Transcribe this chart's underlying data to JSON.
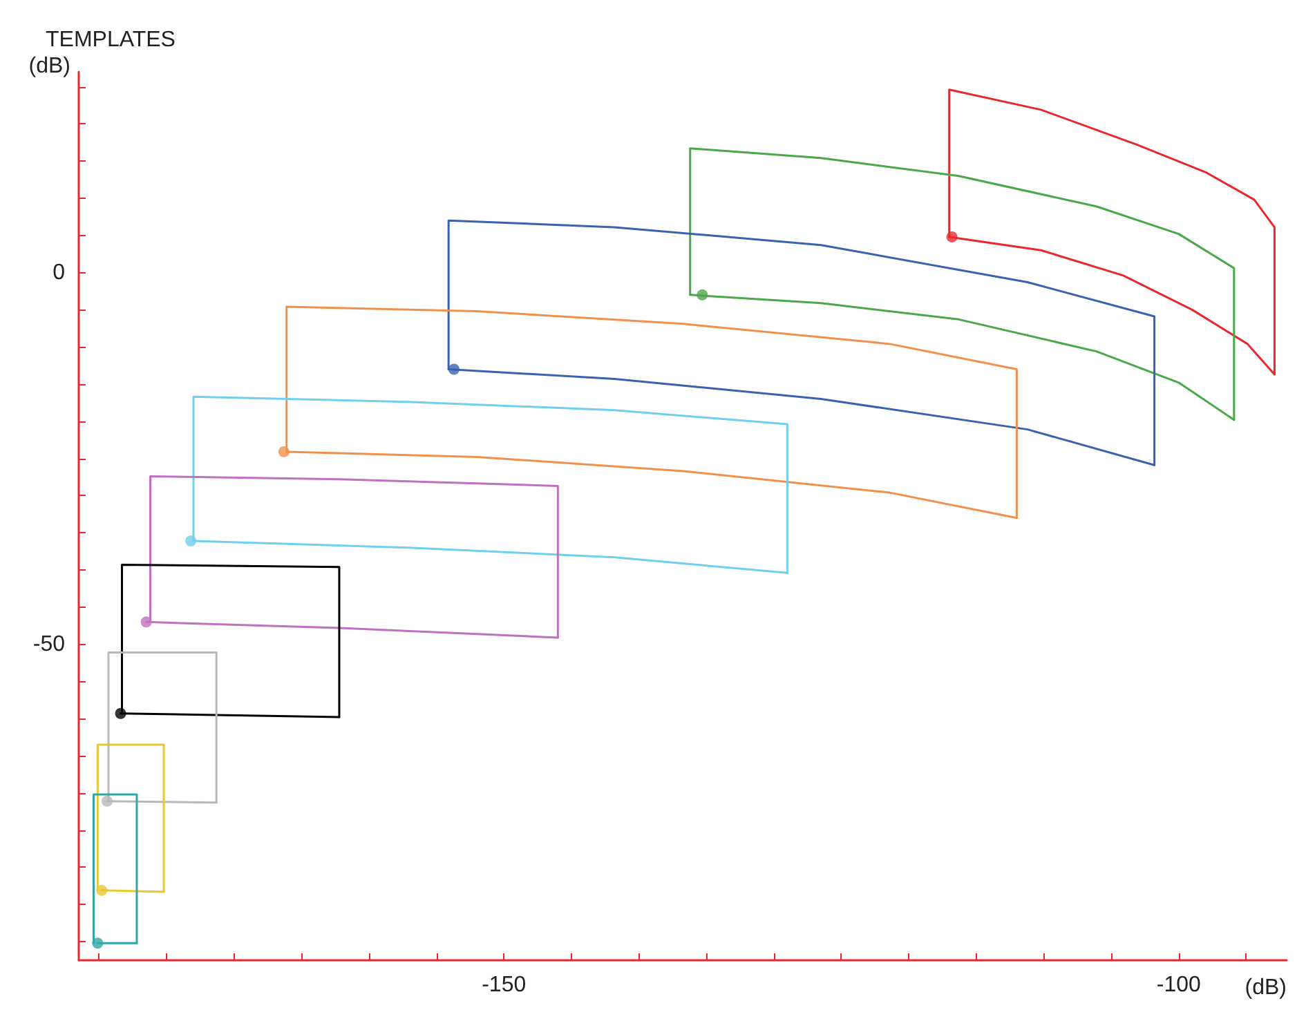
{
  "chart_data": {
    "type": "line",
    "title": "TEMPLATES",
    "xlabel": "(dB)",
    "ylabel": "(dB)",
    "xlim": [
      -181.5,
      -92
    ],
    "ylim": [
      -92.5,
      27
    ],
    "xticks": [
      {
        "value": -180,
        "label": null
      },
      {
        "value": -175,
        "label": null
      },
      {
        "value": -170,
        "label": null
      },
      {
        "value": -165,
        "label": null
      },
      {
        "value": -160,
        "label": null
      },
      {
        "value": -155,
        "label": null
      },
      -150,
      {
        "value": -145,
        "label": null
      },
      {
        "value": -140,
        "label": null
      },
      {
        "value": -135,
        "label": null
      },
      {
        "value": -130,
        "label": null
      },
      {
        "value": -125,
        "label": null
      },
      {
        "value": -120,
        "label": null
      },
      {
        "value": -115,
        "label": null
      },
      {
        "value": -110,
        "label": null
      },
      {
        "value": -105,
        "label": null
      },
      -100,
      {
        "value": -95,
        "label": null
      }
    ],
    "yticks": [
      {
        "value": -90,
        "label": null
      },
      {
        "value": -85,
        "label": null
      },
      {
        "value": -80,
        "label": null
      },
      {
        "value": -75,
        "label": null
      },
      {
        "value": -70,
        "label": null
      },
      {
        "value": -65,
        "label": null
      },
      {
        "value": -60,
        "label": null
      },
      {
        "value": -55,
        "label": null
      },
      -50,
      {
        "value": -45,
        "label": null
      },
      {
        "value": -40,
        "label": null
      },
      {
        "value": -35,
        "label": null
      },
      {
        "value": -30,
        "label": null
      },
      {
        "value": -25,
        "label": null
      },
      {
        "value": -20,
        "label": null
      },
      {
        "value": -15,
        "label": null
      },
      {
        "value": -10,
        "label": null
      },
      {
        "value": -5,
        "label": null
      },
      0,
      {
        "value": 5,
        "label": null
      },
      {
        "value": 10,
        "label": null
      },
      {
        "value": 15,
        "label": null
      },
      {
        "value": 20,
        "label": null
      },
      {
        "value": 25,
        "label": null
      }
    ],
    "grid": false,
    "series": [
      {
        "color": "#e8282e",
        "x": [
          -117.0,
          -117.0,
          -110.2,
          -103.1,
          -98.0,
          -94.4,
          -92.9,
          -92.9
        ],
        "values": [
          4.8,
          24.6,
          21.9,
          17.2,
          13.5,
          9.8,
          6.1,
          -13.7
        ]
      },
      {
        "color": "#e8282e",
        "x": [
          -117.0,
          -110.2,
          -104.1,
          -99.0,
          -94.9,
          -92.9
        ],
        "values": [
          4.8,
          3.0,
          -0.4,
          -5.0,
          -9.6,
          -13.7
        ]
      },
      {
        "type": "scatter",
        "color": "#e8282e",
        "x": [
          -116.8
        ],
        "values": [
          4.8
        ]
      },
      {
        "color": "#4aa84a",
        "x": [
          -136.2,
          -136.2,
          -126.5,
          -116.3,
          -106.1,
          -100,
          -95.9,
          -95.9
        ],
        "values": [
          -3.0,
          16.7,
          15.4,
          13.0,
          8.9,
          5.2,
          0.6,
          -19.8
        ]
      },
      {
        "color": "#4aa84a",
        "x": [
          -136.2,
          -126.5,
          -116.3,
          -106.1,
          -100,
          -95.9
        ],
        "values": [
          -3.0,
          -4.1,
          -6.3,
          -10.6,
          -14.8,
          -19.8
        ]
      },
      {
        "type": "scatter",
        "color": "#4aa84a",
        "x": [
          -135.3
        ],
        "values": [
          -3.0
        ]
      },
      {
        "color": "#3a62b0",
        "x": [
          -154.1,
          -154.1,
          -141.8,
          -126.5,
          -111.2,
          -101.8,
          -101.8
        ],
        "values": [
          -13.0,
          7.0,
          6.1,
          3.7,
          -1.3,
          -5.9,
          -25.9
        ]
      },
      {
        "color": "#3a62b0",
        "x": [
          -154.1,
          -141.8,
          -126.5,
          -111.2,
          -101.8
        ],
        "values": [
          -13.0,
          -14.3,
          -17.0,
          -21.1,
          -25.9
        ]
      },
      {
        "type": "scatter",
        "color": "#3a62b0",
        "x": [
          -153.7
        ],
        "values": [
          -13.0
        ]
      },
      {
        "color": "#f0904a",
        "x": [
          -166.1,
          -166.1,
          -152.0,
          -136.7,
          -121.4,
          -112.0,
          -112.0
        ],
        "values": [
          -24.1,
          -4.6,
          -5.2,
          -6.9,
          -9.6,
          -13.0,
          -33.0
        ]
      },
      {
        "color": "#f0904a",
        "x": [
          -166.1,
          -152.0,
          -136.7,
          -121.4,
          -112.0
        ],
        "values": [
          -24.1,
          -24.8,
          -26.7,
          -29.6,
          -33.0
        ]
      },
      {
        "type": "scatter",
        "color": "#f0904a",
        "x": [
          -166.3
        ],
        "values": [
          -24.1
        ]
      },
      {
        "color": "#70cfee",
        "x": [
          -173.0,
          -173.0,
          -157.1,
          -141.8,
          -129.0,
          -129.0
        ],
        "values": [
          -36.1,
          -16.7,
          -17.4,
          -18.5,
          -20.4,
          -40.4
        ]
      },
      {
        "color": "#70cfee",
        "x": [
          -173.0,
          -157.1,
          -141.8,
          -129.0
        ],
        "values": [
          -36.1,
          -37.0,
          -38.3,
          -40.4
        ]
      },
      {
        "type": "scatter",
        "color": "#70cfee",
        "x": [
          -173.2
        ],
        "values": [
          -36.1
        ]
      },
      {
        "color": "#c070c0",
        "x": [
          -176.2,
          -176.2,
          -162.2,
          -146.0,
          -146.0
        ],
        "values": [
          -47.0,
          -27.4,
          -27.8,
          -28.7,
          -49.1
        ]
      },
      {
        "color": "#c070c0",
        "x": [
          -176.5,
          -162.2,
          -146.0
        ],
        "values": [
          -47.0,
          -47.8,
          -49.1
        ]
      },
      {
        "type": "scatter",
        "color": "#c070c0",
        "x": [
          -176.5
        ],
        "values": [
          -47.0
        ]
      },
      {
        "color": "#000000",
        "x": [
          -178.3,
          -178.3,
          -162.2,
          -162.2
        ],
        "values": [
          -59.3,
          -39.3,
          -39.6,
          -59.8
        ]
      },
      {
        "color": "#000000",
        "x": [
          -178.4,
          -162.2
        ],
        "values": [
          -59.3,
          -59.8
        ]
      },
      {
        "type": "scatter",
        "color": "#000000",
        "x": [
          -178.4
        ],
        "values": [
          -59.3
        ]
      },
      {
        "color": "#b8b8b8",
        "x": [
          -179.3,
          -179.3,
          -171.3,
          -171.3
        ],
        "values": [
          -71.1,
          -51.1,
          -51.1,
          -71.3
        ]
      },
      {
        "color": "#b8b8b8",
        "x": [
          -179.4,
          -171.3
        ],
        "values": [
          -71.1,
          -71.3
        ]
      },
      {
        "type": "scatter",
        "color": "#b8b8b8",
        "x": [
          -179.4
        ],
        "values": [
          -71.1
        ]
      },
      {
        "color": "#e8c830",
        "x": [
          -180.1,
          -180.1,
          -175.2,
          -175.2
        ],
        "values": [
          -83.1,
          -63.5,
          -63.5,
          -83.3
        ]
      },
      {
        "color": "#e8c830",
        "x": [
          -179.8,
          -175.2
        ],
        "values": [
          -83.1,
          -83.3
        ]
      },
      {
        "type": "scatter",
        "color": "#e8c830",
        "x": [
          -179.8
        ],
        "values": [
          -83.1
        ]
      },
      {
        "color": "#30a8a8",
        "x": [
          -180.4,
          -180.4,
          -177.2,
          -177.2
        ],
        "values": [
          -90.2,
          -70.2,
          -70.2,
          -90.2
        ]
      },
      {
        "color": "#30a8a8",
        "x": [
          -180.1,
          -177.2
        ],
        "values": [
          -90.2,
          -90.2
        ]
      },
      {
        "type": "scatter",
        "color": "#30a8a8",
        "x": [
          -180.1
        ],
        "values": [
          -90.2
        ]
      }
    ]
  }
}
